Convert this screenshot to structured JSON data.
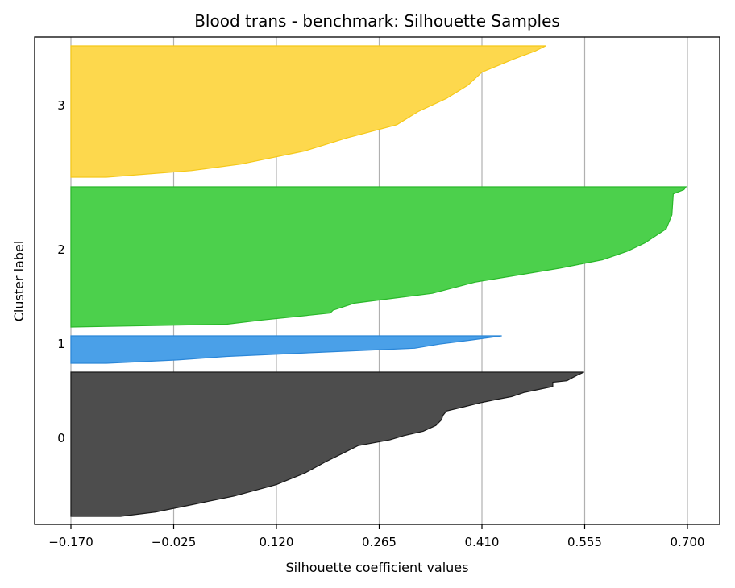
{
  "chart_data": {
    "type": "area",
    "title": "Blood trans - benchmark: Silhouette Samples",
    "xlabel": "Silhouette coefficient values",
    "ylabel": "Cluster label",
    "xlim": [
      -0.17,
      0.7
    ],
    "xticks": [
      "-0.170",
      "-0.025",
      "0.120",
      "0.265",
      "0.410",
      "0.555",
      "0.700"
    ],
    "xtick_values": [
      -0.17,
      -0.025,
      0.12,
      0.265,
      0.41,
      0.555,
      0.7
    ],
    "grid": "vertical",
    "clusters": [
      {
        "label": "0",
        "color": "#4d4d4d",
        "edge_color": "#1a1a1a",
        "profile": [
          [
            0,
            0.554
          ],
          [
            0.02,
            0.545
          ],
          [
            0.04,
            0.537
          ],
          [
            0.06,
            0.53
          ],
          [
            0.07,
            0.51
          ],
          [
            0.1,
            0.51
          ],
          [
            0.12,
            0.49
          ],
          [
            0.14,
            0.47
          ],
          [
            0.17,
            0.452
          ],
          [
            0.19,
            0.43
          ],
          [
            0.21,
            0.41
          ],
          [
            0.24,
            0.385
          ],
          [
            0.27,
            0.36
          ],
          [
            0.3,
            0.355
          ],
          [
            0.33,
            0.353
          ],
          [
            0.37,
            0.345
          ],
          [
            0.41,
            0.327
          ],
          [
            0.44,
            0.3
          ],
          [
            0.47,
            0.28
          ],
          [
            0.51,
            0.235
          ],
          [
            0.56,
            0.215
          ],
          [
            0.62,
            0.19
          ],
          [
            0.7,
            0.16
          ],
          [
            0.78,
            0.12
          ],
          [
            0.86,
            0.06
          ],
          [
            0.93,
            -0.01
          ],
          [
            0.97,
            -0.05
          ],
          [
            1,
            -0.1
          ]
        ]
      },
      {
        "label": "1",
        "color": "#4aa0e8",
        "edge_color": "#2a86d8",
        "profile": [
          [
            0,
            0.438
          ],
          [
            0.15,
            0.395
          ],
          [
            0.3,
            0.35
          ],
          [
            0.45,
            0.315
          ],
          [
            0.6,
            0.18
          ],
          [
            0.75,
            0.05
          ],
          [
            0.88,
            -0.02
          ],
          [
            1,
            -0.12
          ]
        ]
      },
      {
        "label": "2",
        "color": "#4cd04c",
        "edge_color": "#2ab82a",
        "profile": [
          [
            0,
            0.698
          ],
          [
            0.02,
            0.695
          ],
          [
            0.05,
            0.68
          ],
          [
            0.2,
            0.678
          ],
          [
            0.3,
            0.67
          ],
          [
            0.4,
            0.64
          ],
          [
            0.46,
            0.615
          ],
          [
            0.52,
            0.58
          ],
          [
            0.58,
            0.52
          ],
          [
            0.63,
            0.46
          ],
          [
            0.68,
            0.4
          ],
          [
            0.76,
            0.34
          ],
          [
            0.83,
            0.23
          ],
          [
            0.88,
            0.2
          ],
          [
            0.9,
            0.196
          ],
          [
            0.95,
            0.1
          ],
          [
            0.98,
            0.05
          ],
          [
            1,
            -0.17
          ]
        ]
      },
      {
        "label": "3",
        "color": "#fdd84d",
        "edge_color": "#f5c818",
        "profile": [
          [
            0,
            0.5
          ],
          [
            0.04,
            0.485
          ],
          [
            0.1,
            0.455
          ],
          [
            0.2,
            0.41
          ],
          [
            0.3,
            0.39
          ],
          [
            0.4,
            0.36
          ],
          [
            0.5,
            0.32
          ],
          [
            0.6,
            0.29
          ],
          [
            0.7,
            0.22
          ],
          [
            0.8,
            0.16
          ],
          [
            0.9,
            0.07
          ],
          [
            0.95,
            0.0
          ],
          [
            1,
            -0.12
          ]
        ]
      }
    ]
  }
}
